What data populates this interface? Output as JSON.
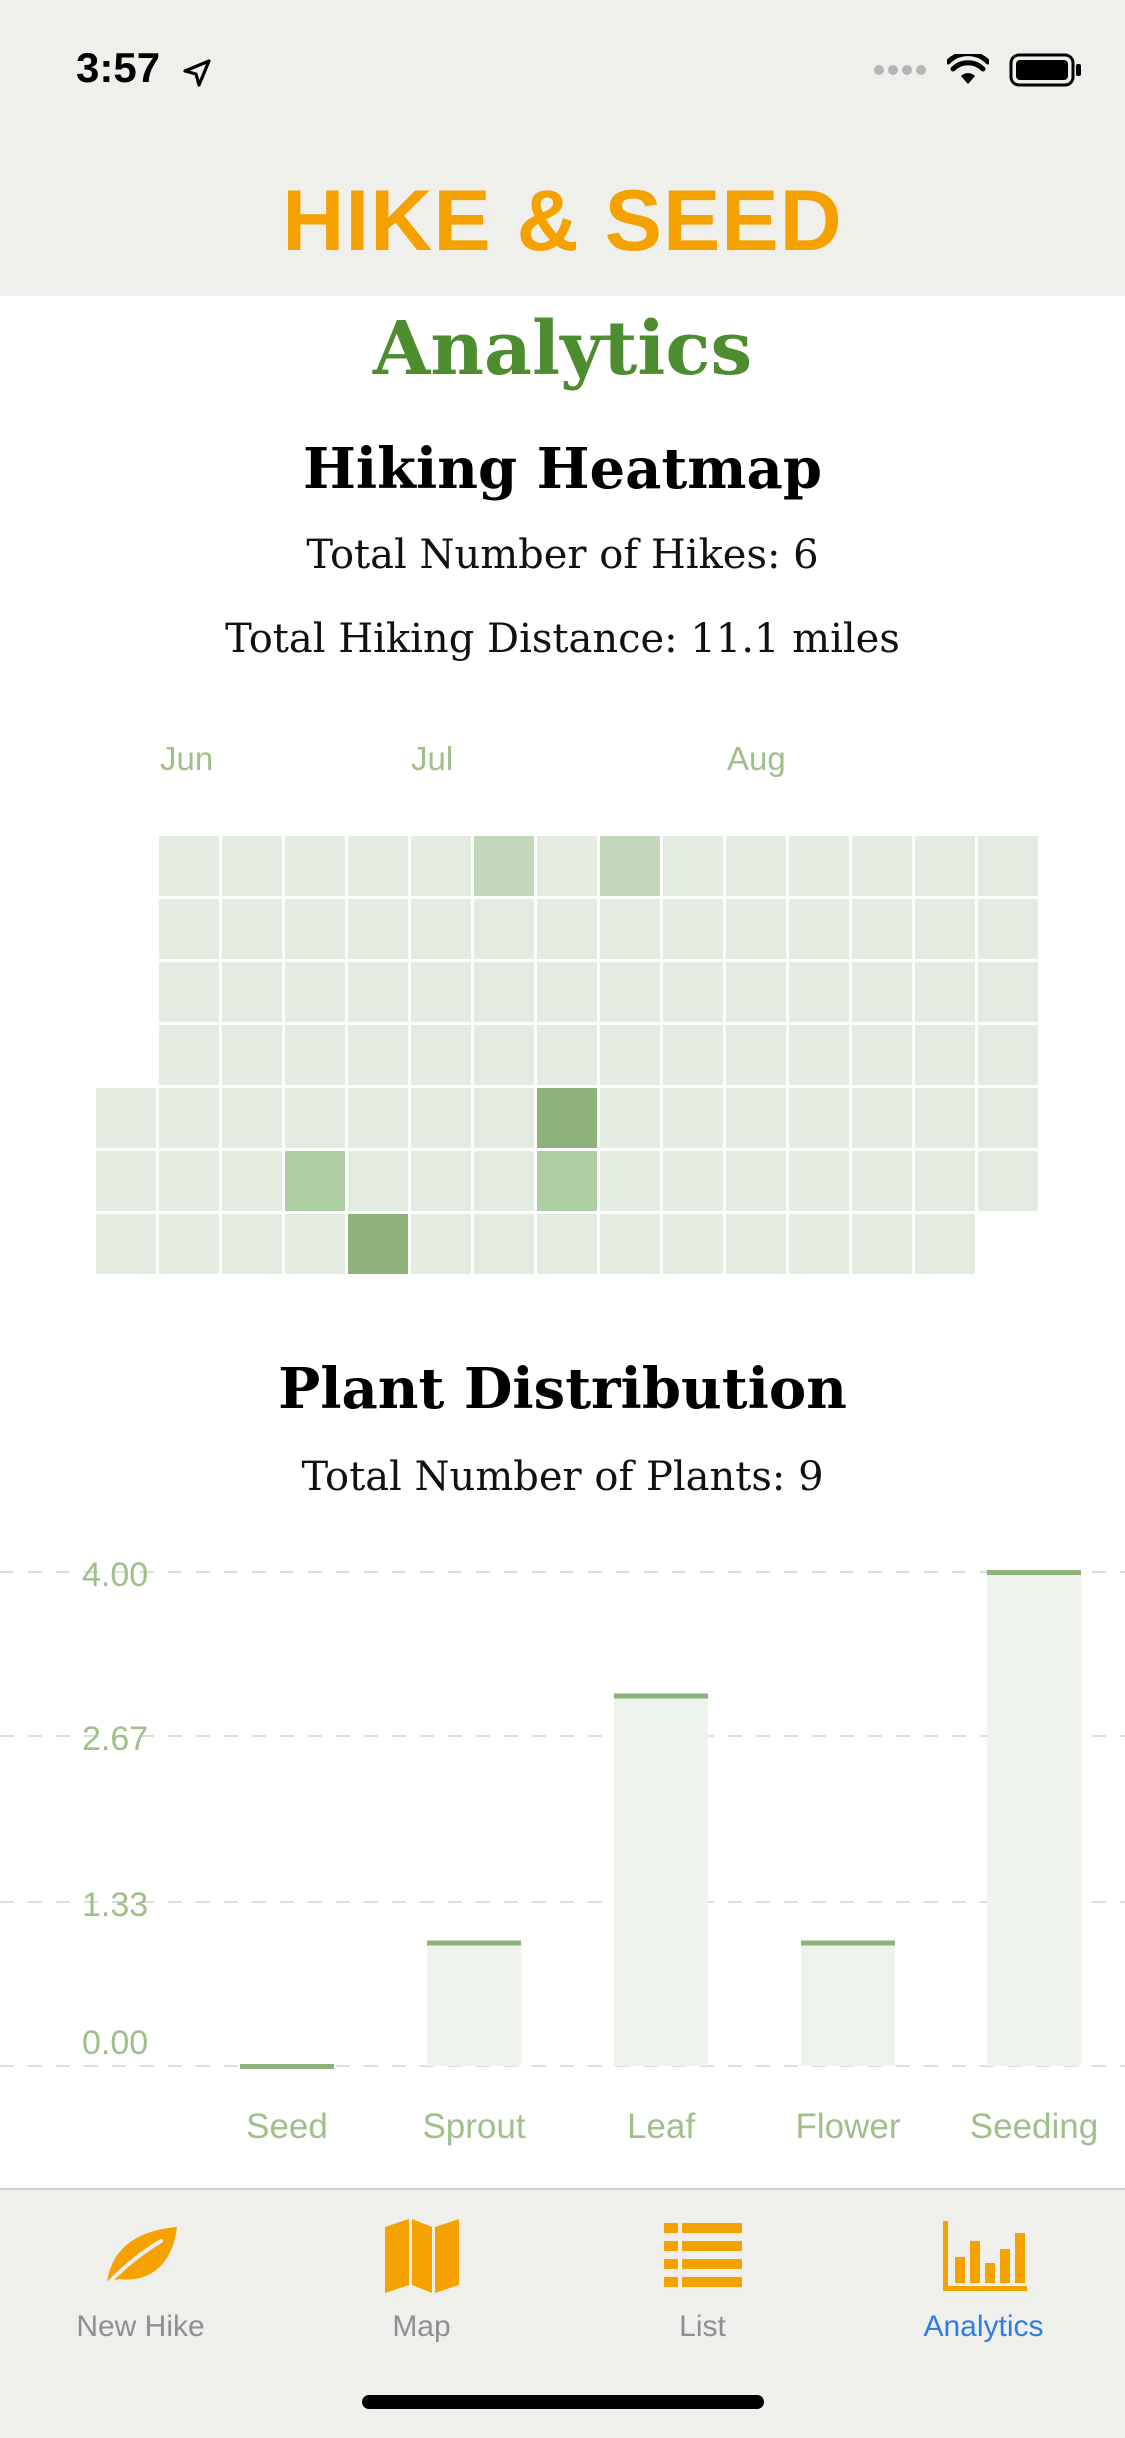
{
  "status_bar": {
    "time": "3:57"
  },
  "header": {
    "app_title": "HIKE & SEED"
  },
  "page": {
    "title": "Analytics"
  },
  "heatmap": {
    "title": "Hiking Heatmap",
    "total_hikes": "Total Number of Hikes: 6",
    "total_distance": "Total Hiking Distance: 11.1 miles",
    "months": [
      "Jun",
      "Jul",
      "Aug"
    ],
    "colors": {
      "empty": "#e4ebe0",
      "low": "#c4d9bc",
      "mid": "#b0cea3",
      "high": "#8db37a"
    }
  },
  "plants": {
    "title": "Plant Distribution",
    "total": "Total Number of Plants: 9"
  },
  "chart_data": {
    "type": "bar",
    "categories": [
      "Seed",
      "Sprout",
      "Leaf",
      "Flower",
      "Seeding"
    ],
    "values": [
      0,
      1,
      3,
      1,
      4
    ],
    "yticks": [
      "0.00",
      "1.33",
      "2.67",
      "4.00"
    ],
    "ylim": [
      0,
      4
    ],
    "grid": true,
    "colors": {
      "bar_fill": "#eef3ec",
      "bar_cap": "#8db37a",
      "tick_label": "#9fc08a",
      "grid": "#d8dfd4"
    }
  },
  "tab_bar": {
    "tabs": [
      {
        "label": "New Hike",
        "icon": "leaf-icon"
      },
      {
        "label": "Map",
        "icon": "map-icon"
      },
      {
        "label": "List",
        "icon": "list-icon"
      },
      {
        "label": "Analytics",
        "icon": "bar-chart-icon"
      }
    ],
    "active": "Analytics",
    "colors": {
      "icon": "#f5a100",
      "active_label": "#2f7de1",
      "inactive_label": "#8e8e93"
    }
  }
}
